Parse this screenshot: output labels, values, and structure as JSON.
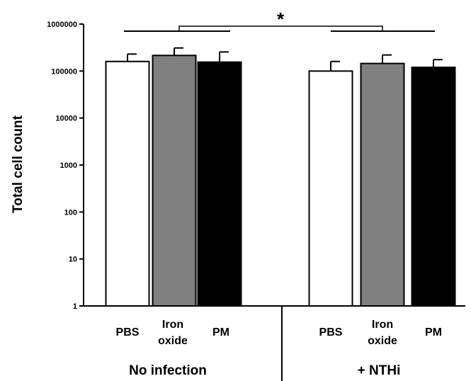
{
  "chart_data": {
    "type": "bar",
    "ylabel": "Total cell count",
    "yscale": "log",
    "ylim": [
      1,
      1000000
    ],
    "yticks": [
      "1",
      "10",
      "100",
      "1000",
      "10000",
      "100000",
      "1000000"
    ],
    "groups": [
      {
        "label": "No infection",
        "categories": [
          {
            "lines": [
              "PBS"
            ],
            "value": 160000,
            "error": 70000,
            "fill": "#ffffff"
          },
          {
            "lines": [
              "Iron",
              "oxide"
            ],
            "value": 215000,
            "error": 95000,
            "fill": "#808080"
          },
          {
            "lines": [
              "PM"
            ],
            "value": 155000,
            "error": 100000,
            "fill": "#000000"
          }
        ]
      },
      {
        "label": "+ NTHi",
        "categories": [
          {
            "lines": [
              "PBS"
            ],
            "value": 100000,
            "error": 60000,
            "fill": "#ffffff"
          },
          {
            "lines": [
              "Iron",
              "oxide"
            ],
            "value": 145000,
            "error": 75000,
            "fill": "#808080"
          },
          {
            "lines": [
              "PM"
            ],
            "value": 120000,
            "error": 55000,
            "fill": "#000000"
          }
        ]
      }
    ],
    "annotation": "*",
    "grid": false,
    "legend": "none"
  }
}
